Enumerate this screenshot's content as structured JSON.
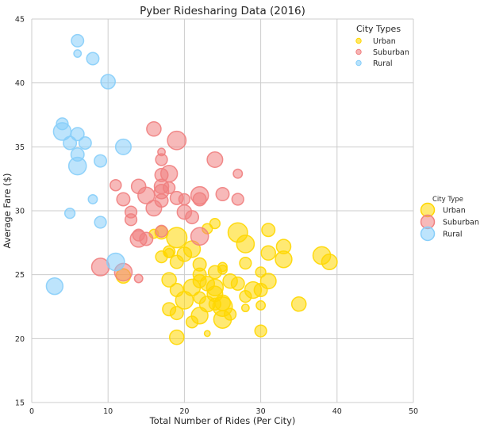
{
  "chart_data": {
    "type": "scatter",
    "title": "Pyber Ridesharing Data (2016)",
    "xlabel": "Total Number of Rides (Per City)",
    "ylabel": "Average Fare ($)",
    "xlim": [
      0,
      50
    ],
    "ylim": [
      15,
      45
    ],
    "xticks": [
      0,
      10,
      20,
      30,
      40,
      50
    ],
    "yticks": [
      15,
      20,
      25,
      30,
      35,
      40,
      45
    ],
    "grid": true,
    "size_encoding": "bubble size = number of drivers",
    "legend_inside": {
      "title": "City Types",
      "placement": "top-right",
      "entries": [
        "Urban",
        "Suburban",
        "Rural"
      ]
    },
    "legend_outside": {
      "title": "City Type",
      "placement": "right",
      "entries": [
        "Urban",
        "Suburban",
        "Rural"
      ]
    },
    "colors": {
      "Urban": "#ffd700",
      "Suburban": "#f08080",
      "Rural": "#87cefa"
    },
    "series": [
      {
        "name": "Urban",
        "points": [
          [
            38,
            26.5,
            45
          ],
          [
            39,
            26.0,
            35
          ],
          [
            31,
            28.5,
            25
          ],
          [
            33,
            27.2,
            30
          ],
          [
            33,
            26.2,
            40
          ],
          [
            31,
            26.7,
            30
          ],
          [
            30,
            25.2,
            15
          ],
          [
            31,
            24.5,
            35
          ],
          [
            28,
            25.9,
            20
          ],
          [
            28,
            27.4,
            45
          ],
          [
            27,
            28.3,
            55
          ],
          [
            26,
            24.5,
            30
          ],
          [
            25,
            25.6,
            12
          ],
          [
            25,
            25.4,
            12
          ],
          [
            24,
            25.2,
            25
          ],
          [
            24,
            24.0,
            40
          ],
          [
            23,
            28.6,
            15
          ],
          [
            24,
            29.0,
            15
          ],
          [
            22,
            25.8,
            25
          ],
          [
            22,
            25.0,
            25
          ],
          [
            21,
            27.0,
            40
          ],
          [
            20,
            26.6,
            30
          ],
          [
            19,
            27.9,
            60
          ],
          [
            19,
            26.0,
            25
          ],
          [
            18,
            26.8,
            20
          ],
          [
            17,
            26.4,
            20
          ],
          [
            18,
            24.6,
            30
          ],
          [
            19,
            23.8,
            25
          ],
          [
            20,
            23.0,
            45
          ],
          [
            21,
            24.0,
            40
          ],
          [
            22,
            23.2,
            20
          ],
          [
            22,
            24.5,
            25
          ],
          [
            23,
            22.7,
            35
          ],
          [
            23,
            24.3,
            30
          ],
          [
            24,
            23.5,
            35
          ],
          [
            25,
            22.8,
            35
          ],
          [
            25,
            22.5,
            55
          ],
          [
            25,
            21.5,
            45
          ],
          [
            26,
            21.9,
            20
          ],
          [
            27,
            24.3,
            25
          ],
          [
            28,
            23.3,
            20
          ],
          [
            29,
            23.8,
            40
          ],
          [
            30,
            23.8,
            25
          ],
          [
            30,
            22.6,
            12
          ],
          [
            30,
            20.6,
            20
          ],
          [
            35,
            22.7,
            30
          ],
          [
            28,
            22.4,
            8
          ],
          [
            24,
            22.7,
            20
          ],
          [
            22,
            21.8,
            40
          ],
          [
            21,
            21.3,
            20
          ],
          [
            19,
            22.0,
            25
          ],
          [
            18,
            22.3,
            25
          ],
          [
            19,
            20.1,
            30
          ],
          [
            23,
            20.4,
            5
          ],
          [
            17,
            28.3,
            25
          ],
          [
            16,
            28.2,
            12
          ],
          [
            18,
            26.7,
            12
          ],
          [
            12,
            24.9,
            30
          ]
        ]
      },
      {
        "name": "Suburban",
        "points": [
          [
            19,
            35.5,
            50
          ],
          [
            16,
            36.4,
            30
          ],
          [
            17,
            34.6,
            8
          ],
          [
            17,
            34.0,
            20
          ],
          [
            24,
            34.0,
            35
          ],
          [
            18,
            32.9,
            40
          ],
          [
            17,
            32.8,
            25
          ],
          [
            27,
            32.9,
            12
          ],
          [
            14,
            31.9,
            30
          ],
          [
            17,
            31.9,
            30
          ],
          [
            18,
            31.8,
            20
          ],
          [
            11,
            32.0,
            18
          ],
          [
            15,
            31.2,
            40
          ],
          [
            12,
            30.9,
            25
          ],
          [
            16,
            30.2,
            35
          ],
          [
            17,
            30.8,
            25
          ],
          [
            17,
            31.5,
            30
          ],
          [
            19,
            31.0,
            25
          ],
          [
            22,
            31.2,
            45
          ],
          [
            22,
            30.9,
            25
          ],
          [
            25,
            31.3,
            25
          ],
          [
            27,
            30.9,
            20
          ],
          [
            20,
            29.9,
            30
          ],
          [
            13,
            29.9,
            20
          ],
          [
            13,
            29.3,
            20
          ],
          [
            21,
            29.5,
            25
          ],
          [
            14,
            28.1,
            20
          ],
          [
            15,
            27.8,
            25
          ],
          [
            14,
            27.8,
            40
          ],
          [
            17,
            28.4,
            20
          ],
          [
            22,
            28.0,
            45
          ],
          [
            9,
            25.6,
            45
          ],
          [
            12,
            25.2,
            45
          ],
          [
            14,
            24.7,
            10
          ],
          [
            20,
            30.9,
            18
          ]
        ]
      },
      {
        "name": "Rural",
        "points": [
          [
            6,
            43.3,
            22
          ],
          [
            6,
            42.3,
            8
          ],
          [
            8,
            41.9,
            22
          ],
          [
            10,
            40.1,
            30
          ],
          [
            4,
            36.8,
            20
          ],
          [
            4,
            36.2,
            45
          ],
          [
            6,
            36.0,
            25
          ],
          [
            5,
            35.3,
            25
          ],
          [
            7,
            35.3,
            22
          ],
          [
            12,
            35.0,
            35
          ],
          [
            6,
            34.4,
            25
          ],
          [
            6,
            33.5,
            45
          ],
          [
            9,
            33.9,
            22
          ],
          [
            8,
            30.9,
            12
          ],
          [
            5,
            29.8,
            15
          ],
          [
            9,
            29.1,
            20
          ],
          [
            11,
            26.0,
            45
          ],
          [
            3,
            24.1,
            40
          ]
        ]
      }
    ]
  }
}
